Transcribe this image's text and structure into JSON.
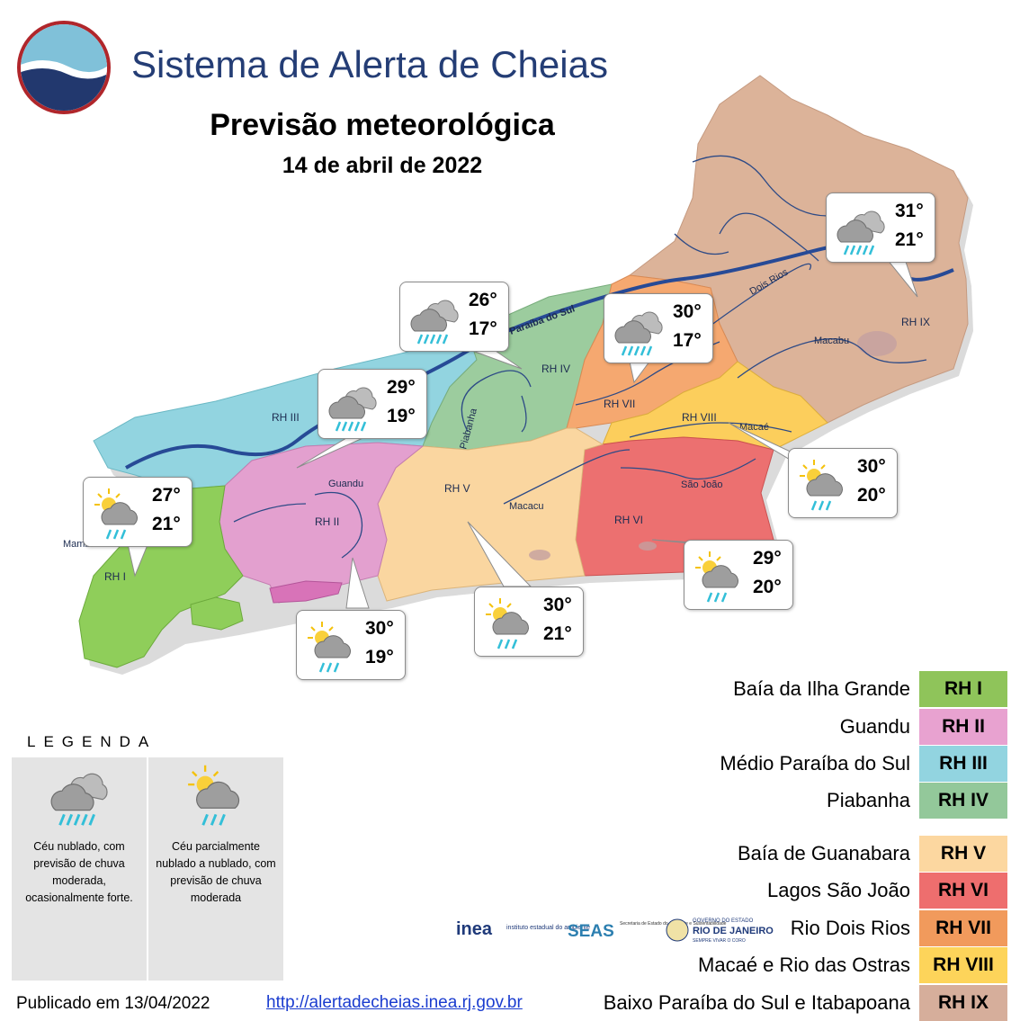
{
  "header": {
    "app_title": "Sistema de Alerta de Cheias",
    "subtitle": "Previsão meteorológica",
    "date": "14 de abril de 2022"
  },
  "map": {
    "rivers": [
      "Paraíba do Sul",
      "Dois Rios",
      "Macabu",
      "Macaé",
      "São João",
      "Macacu",
      "Guandu",
      "Piabanha",
      "Mambucaba"
    ],
    "regions": [
      {
        "code": "RH I",
        "color": "#8fce5a"
      },
      {
        "code": "RH II",
        "color": "#e3a0cf"
      },
      {
        "code": "RH III",
        "color": "#8fd6e0"
      },
      {
        "code": "RH IV",
        "color": "#9ccc9e"
      },
      {
        "code": "RH V",
        "color": "#fad6a0"
      },
      {
        "code": "RH VI",
        "color": "#ec7070"
      },
      {
        "code": "RH VII",
        "color": "#f5a870"
      },
      {
        "code": "RH VIII",
        "color": "#fcce5c"
      },
      {
        "code": "RH IX",
        "color": "#dcb399"
      }
    ],
    "forecasts": [
      {
        "region": "RH I",
        "icon": "partly-cloudy-rain-icon",
        "max": "27°",
        "min": "21°"
      },
      {
        "region": "RH II",
        "icon": "partly-cloudy-rain-icon",
        "max": "30°",
        "min": "19°"
      },
      {
        "region": "RH III",
        "icon": "cloudy-rain-icon",
        "max": "29°",
        "min": "19°"
      },
      {
        "region": "RH IV",
        "icon": "cloudy-rain-icon",
        "max": "26°",
        "min": "17°"
      },
      {
        "region": "RH V",
        "icon": "partly-cloudy-rain-icon",
        "max": "30°",
        "min": "21°"
      },
      {
        "region": "RH VI",
        "icon": "partly-cloudy-rain-icon",
        "max": "29°",
        "min": "20°"
      },
      {
        "region": "RH VII",
        "icon": "cloudy-rain-icon",
        "max": "30°",
        "min": "17°"
      },
      {
        "region": "RH VIII",
        "icon": "partly-cloudy-rain-icon",
        "max": "30°",
        "min": "20°"
      },
      {
        "region": "RH IX",
        "icon": "cloudy-rain-icon",
        "max": "31°",
        "min": "21°"
      }
    ]
  },
  "legend": {
    "title": "LEGENDA",
    "items": [
      {
        "icon": "cloudy-rain-icon",
        "text": "Céu  nublado, com previsão de chuva moderada, ocasionalmente forte."
      },
      {
        "icon": "partly-cloudy-rain-icon",
        "text": "Céu parcialmente nublado  a nublado, com previsão de chuva moderada"
      }
    ]
  },
  "key": [
    {
      "name": "Baía da Ilha Grande",
      "code": "RH I",
      "color": "#8fc45a"
    },
    {
      "name": "Guandu",
      "code": "RH II",
      "color": "#e8a2d0"
    },
    {
      "name": "Médio Paraíba do Sul",
      "code": "RH III",
      "color": "#92d4e0"
    },
    {
      "name": "Piabanha",
      "code": "RH IV",
      "color": "#93c89a"
    },
    {
      "name": "Baía de Guanabara",
      "code": "RH V",
      "color": "#fcd7a0"
    },
    {
      "name": "Lagos São João",
      "code": "RH VI",
      "color": "#ee6e6e"
    },
    {
      "name": "Rio Dois Rios",
      "code": "RH VII",
      "color": "#f19a5c"
    },
    {
      "name": "Macaé e Rio das Ostras",
      "code": "RH VIII",
      "color": "#fdd45a"
    },
    {
      "name": "Baixo Paraíba do Sul e Itabapoana",
      "code": "RH IX",
      "color": "#d6ae9b"
    }
  ],
  "footer": {
    "published": "Publicado em 13/04/2022",
    "link": "http://alertadecheias.inea.rj.gov.br",
    "logos": {
      "inea": "inea",
      "inea_sub": "instituto estadual do ambiente",
      "seas": "SEAS",
      "seas_sub": "Secretaria de Estado do Ambiente e Sustentabilidade",
      "gov_top": "GOVERNO DO ESTADO",
      "gov_main": "RIO DE JANEIRO",
      "gov_sub": "SEMPRE VIVAR O CORO"
    }
  }
}
